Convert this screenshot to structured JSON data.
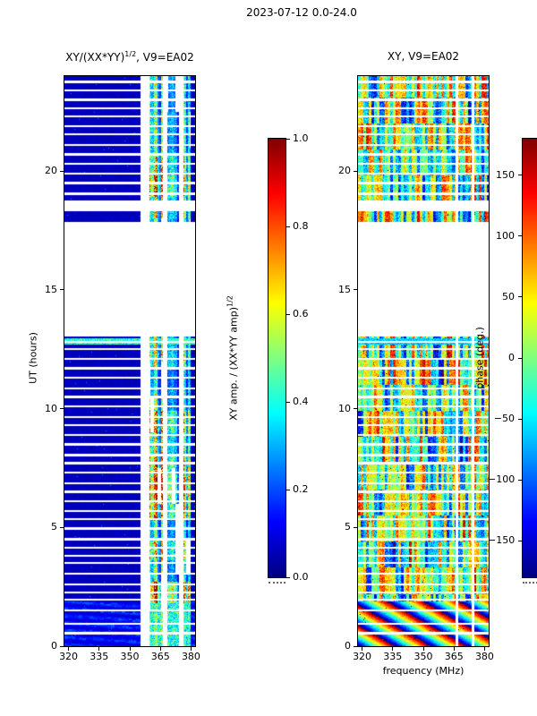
{
  "figure": {
    "title": "2023-07-12 0.0-24.0",
    "background": "#ffffff"
  },
  "chart_data": [
    {
      "type": "heatmap",
      "id": "xy_amp_ratio",
      "title": "XY/(XX*YY)^(1/2), V9=EA02",
      "title_parts": {
        "base": "XY/(XX*YY)",
        "sup": "1/2",
        "tail": ", V9=EA02"
      },
      "ylabel": "UT (hours)",
      "x_range_mhz": [
        318,
        382
      ],
      "y_range_hours": [
        0,
        24
      ],
      "xticks": [
        320,
        335,
        350,
        365,
        380
      ],
      "yticks": [
        0,
        5,
        10,
        15,
        20
      ],
      "colorbar": {
        "label": "XY amp. / (XX*YY amp)^(1/2)",
        "label_parts": {
          "base": "XY amp. / (XX*YY amp)",
          "sup": "1/2"
        },
        "ticks_top_to_bottom": [
          "1.0",
          "0.8",
          "0.6",
          "0.4",
          "0.2",
          "0.0"
        ],
        "vmin": 0.0,
        "vmax": 1.0,
        "cmap": "jet"
      },
      "content": {
        "background_value_range": [
          0.02,
          0.09
        ],
        "bright_channel_bands_mhz": [
          [
            359.6,
            366.3
          ],
          [
            368.2,
            373.9
          ],
          [
            376.4,
            379.9
          ]
        ],
        "flagged_channel_bands_mhz": [
          [
            355.2,
            359.6
          ],
          [
            366.3,
            368.2
          ],
          [
            373.9,
            376.4
          ]
        ],
        "fringe_enhanced_hours": [
          0,
          1.9
        ],
        "wideband_event_hours": [
          [
            12.7,
            12.95
          ]
        ]
      }
    },
    {
      "type": "heatmap",
      "id": "xy_phase",
      "title": "XY, V9=EA02",
      "xlabel": "frequency (MHz)",
      "x_range_mhz": [
        318,
        382
      ],
      "y_range_hours": [
        0,
        24
      ],
      "xticks": [
        320,
        335,
        350,
        365,
        380
      ],
      "yticks": [
        0,
        5,
        10,
        15,
        20
      ],
      "colorbar": {
        "label": "phase (deg.)",
        "ticks_top_to_bottom": [
          "150",
          "100",
          "50",
          "0",
          "−50",
          "−100",
          "−150"
        ],
        "vmin": -180,
        "vmax": 180,
        "cmap": "jet"
      },
      "content": {
        "flagged_channel_lines_mhz": [
          [
            365.9,
            366.9
          ],
          [
            373.8,
            374.8
          ]
        ],
        "fringe_stripes_hours": [
          0,
          1.9
        ],
        "wideband_event_hours": [
          [
            12.7,
            12.95
          ]
        ]
      }
    }
  ],
  "time_structure": {
    "data_segments_hours": [
      [
        0,
        13.05
      ],
      [
        17.85,
        18.3
      ],
      [
        18.75,
        24
      ]
    ],
    "flagged_time_lines_hours": [
      0.55,
      0.95,
      1.5,
      1.95,
      2.25,
      2.6,
      3.05,
      3.5,
      3.8,
      4.15,
      4.5,
      4.95,
      5.35,
      5.7,
      6.1,
      6.5,
      6.85,
      7.3,
      7.7,
      8.05,
      8.5,
      8.9,
      9.3,
      9.65,
      10.1,
      10.5,
      10.85,
      11.3,
      11.7,
      12.1,
      12.5,
      12.8,
      19.05,
      19.5,
      19.9,
      20.3,
      20.7,
      21.1,
      21.55,
      21.9,
      22.3,
      22.65,
      23.0,
      23.4,
      23.75
    ],
    "line_half_width_hours": 0.045
  },
  "render_seed": 7
}
